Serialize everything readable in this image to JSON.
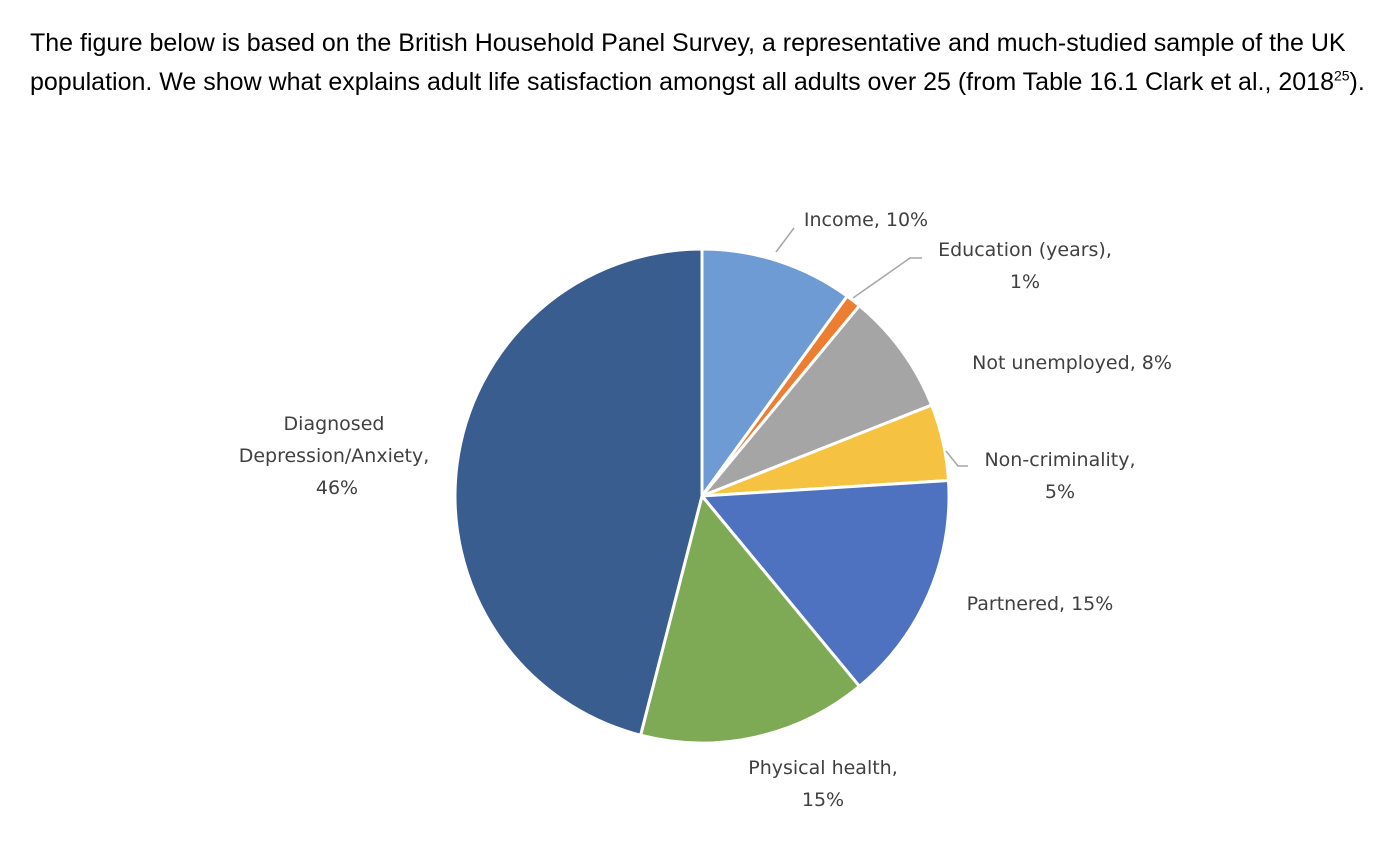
{
  "paragraph": {
    "text": "The figure below is based on the British Household Panel Survey, a representative and much-studied sample of the UK population. We show what explains adult life satisfaction amongst all adults over 25 (from Table 16.1 Clark et al., 2018",
    "superscript": "25",
    "end": ")."
  },
  "chart_data": {
    "type": "pie",
    "categories": [
      "Income",
      "Education (years)",
      "Not unemployed",
      "Non-criminality",
      "Partnered",
      "Physical health",
      "Diagnosed Depression/Anxiety"
    ],
    "values": [
      10,
      1,
      8,
      5,
      15,
      15,
      46
    ],
    "value_labels": [
      "10%",
      "1%",
      "8%",
      "5%",
      "15%",
      "15%",
      "46%"
    ],
    "colors": [
      "#6e9bd3",
      "#ed7d31",
      "#a5a5a5",
      "#f5c242",
      "#4f72c0",
      "#7eaa55",
      "#3a5d8f"
    ]
  }
}
